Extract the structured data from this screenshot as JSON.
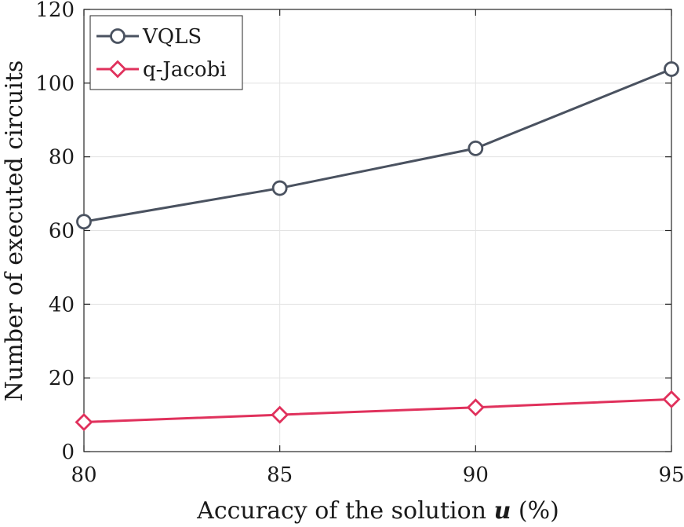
{
  "chart_data": {
    "type": "line",
    "xlabel_main": "Accuracy of the solution ",
    "xlabel_var": "u",
    "xlabel_unit": " (%)",
    "ylabel": "Number of executed circuits",
    "x": [
      80,
      85,
      90,
      95
    ],
    "xlim": [
      80,
      95
    ],
    "ylim": [
      0,
      120
    ],
    "xticks": [
      "80",
      "85",
      "90",
      "95"
    ],
    "yticks": [
      "0",
      "20",
      "40",
      "60",
      "80",
      "100",
      "120"
    ],
    "grid": true,
    "legend_position": "top-left",
    "series": [
      {
        "name": "VQLS",
        "values": [
          62.4,
          71.5,
          82.3,
          103.8
        ],
        "color": "#4a5260",
        "marker": "circle"
      },
      {
        "name": "q-Jacobi",
        "values": [
          8,
          10,
          12,
          14.2
        ],
        "color": "#e0315c",
        "marker": "diamond"
      }
    ]
  }
}
